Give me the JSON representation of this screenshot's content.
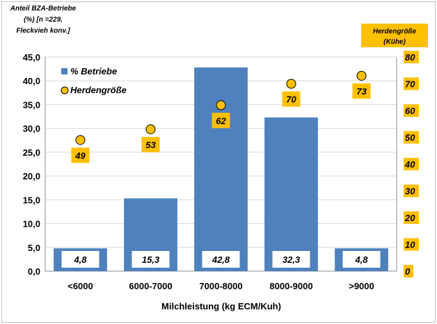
{
  "chart_data": {
    "type": "bar",
    "y_title_lines": [
      "Anteil BZA-Betriebe",
      "(%)   [n =229,",
      "Fleckvieh  konv.]"
    ],
    "y2_title_lines": [
      "Herdengröße",
      "(Kühe)"
    ],
    "xlabel": "Milchleistung (kg ECM/Kuh)",
    "categories": [
      "<6000",
      "6000-7000",
      "7000-8000",
      "8000-9000",
      ">9000"
    ],
    "series": [
      {
        "name": "% Betriebe",
        "type": "bar",
        "axis": "left",
        "color": "#4F81BD",
        "values": [
          4.8,
          15.3,
          42.8,
          32.3,
          4.8
        ],
        "value_labels": [
          "4,8",
          "15,3",
          "42,8",
          "32,3",
          "4,8"
        ]
      },
      {
        "name": "Herdengröße",
        "type": "scatter",
        "axis": "right",
        "color": "#FFC000",
        "values": [
          49,
          53,
          62,
          70,
          73
        ],
        "value_labels": [
          "49",
          "53",
          "62",
          "70",
          "73"
        ]
      }
    ],
    "y_ticks": [
      "0,0",
      "5,0",
      "10,0",
      "15,0",
      "20,0",
      "25,0",
      "30,0",
      "35,0",
      "40,0",
      "45,0"
    ],
    "y2_ticks": [
      "0",
      "10",
      "20",
      "30",
      "40",
      "50",
      "60",
      "70",
      "80"
    ],
    "ylim": [
      0,
      45
    ],
    "y2lim": [
      0,
      80
    ],
    "grid": true,
    "legend": "top-left"
  }
}
